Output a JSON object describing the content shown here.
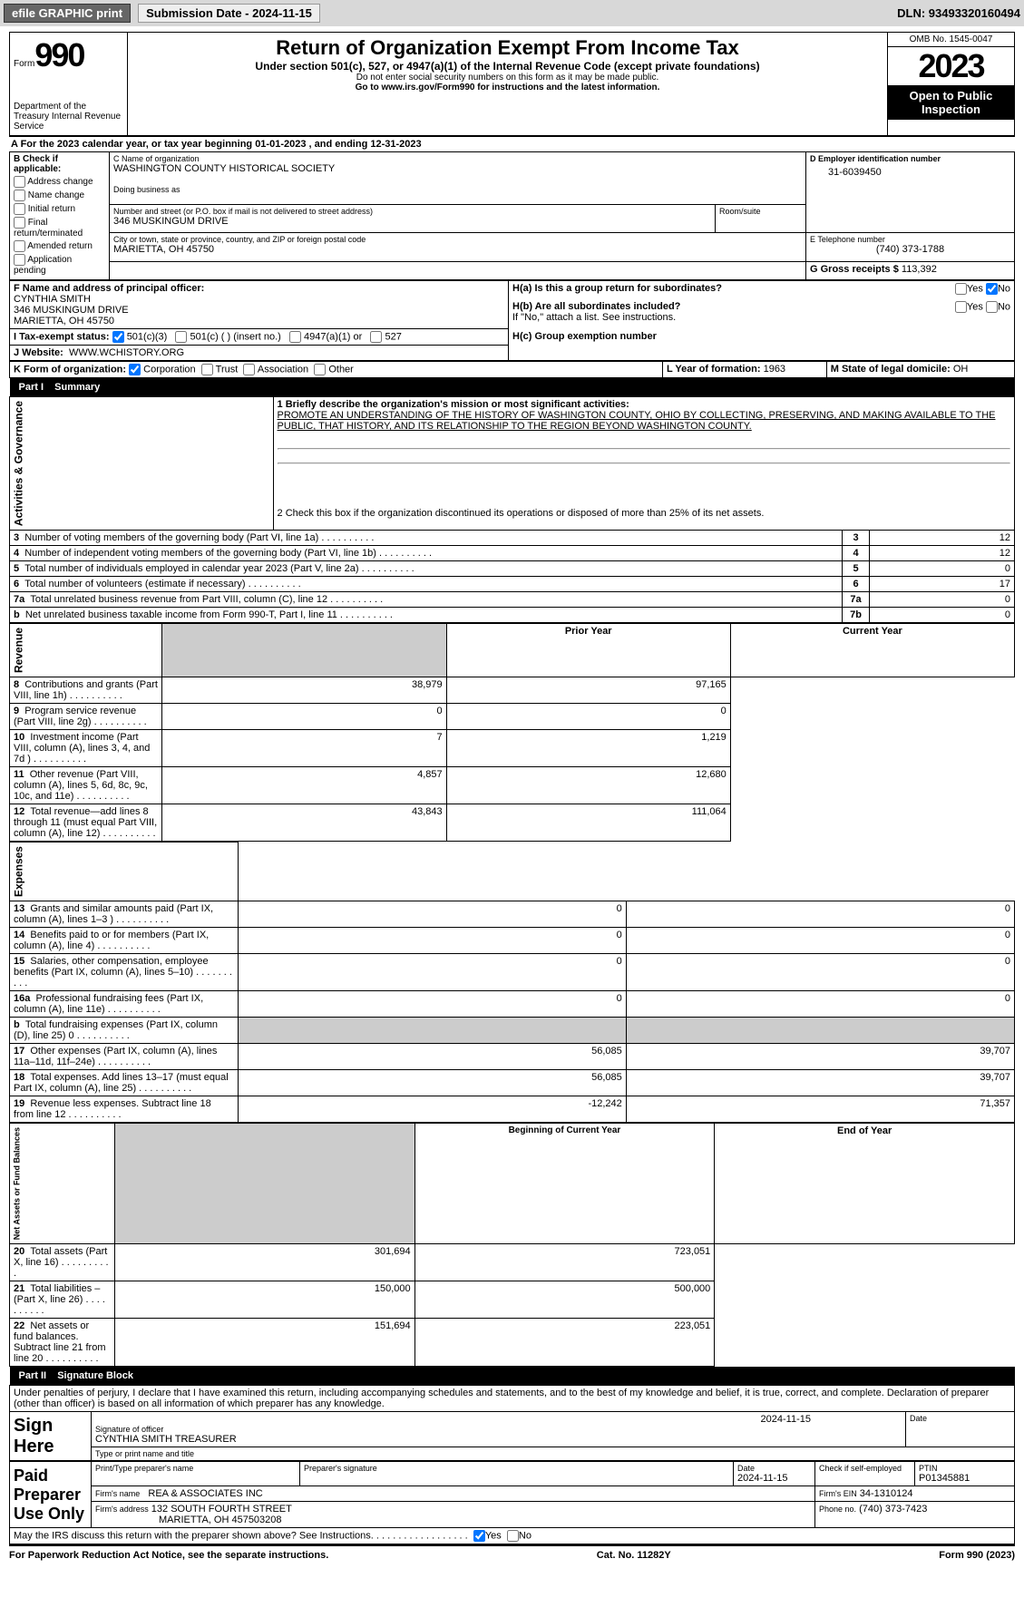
{
  "topbar": {
    "efile": "efile GRAPHIC print",
    "submission": "Submission Date - 2024-11-15",
    "dln": "DLN: 93493320160494"
  },
  "header": {
    "form_word": "Form",
    "form_no": "990",
    "dept": "Department of the Treasury\nInternal Revenue Service",
    "title": "Return of Organization Exempt From Income Tax",
    "sub1": "Under section 501(c), 527, or 4947(a)(1) of the Internal Revenue Code (except private foundations)",
    "sub2": "Do not enter social security numbers on this form as it may be made public.",
    "sub3": "Go to www.irs.gov/Form990 for instructions and the latest information.",
    "omb": "OMB No. 1545-0047",
    "year": "2023",
    "inspect": "Open to Public Inspection"
  },
  "sectionA": {
    "text": "A For the 2023 calendar year, or tax year beginning 01-01-2023   , and ending 12-31-2023"
  },
  "boxB": {
    "label": "B Check if applicable:",
    "items": [
      "Address change",
      "Name change",
      "Initial return",
      "Final return/terminated",
      "Amended return",
      "Application pending"
    ]
  },
  "boxC": {
    "name_label": "C Name of organization",
    "name": "WASHINGTON COUNTY HISTORICAL SOCIETY",
    "dba_label": "Doing business as",
    "street_label": "Number and street (or P.O. box if mail is not delivered to street address)",
    "street": "346 MUSKINGUM DRIVE",
    "room_label": "Room/suite",
    "city_label": "City or town, state or province, country, and ZIP or foreign postal code",
    "city": "MARIETTA, OH  45750"
  },
  "boxD": {
    "label": "D Employer identification number",
    "value": "31-6039450"
  },
  "boxE": {
    "label": "E Telephone number",
    "value": "(740) 373-1788"
  },
  "boxG": {
    "label": "G Gross receipts $",
    "value": "113,392"
  },
  "boxF": {
    "label": "F Name and address of principal officer:",
    "name": "CYNTHIA SMITH",
    "street": "346 MUSKINGUM DRIVE",
    "city": "MARIETTA, OH  45750"
  },
  "boxH": {
    "a": "H(a)  Is this a group return for subordinates?",
    "b": "H(b)  Are all subordinates included?",
    "b_note": "If \"No,\" attach a list. See instructions.",
    "c": "H(c)  Group exemption number"
  },
  "boxI": {
    "label": "I  Tax-exempt status:",
    "opt1": "501(c)(3)",
    "opt2": "501(c) (  ) (insert no.)",
    "opt3": "4947(a)(1) or",
    "opt4": "527"
  },
  "boxJ": {
    "label": "J  Website:",
    "value": "WWW.WCHISTORY.ORG"
  },
  "boxK": {
    "label": "K Form of organization:",
    "opts": [
      "Corporation",
      "Trust",
      "Association",
      "Other"
    ]
  },
  "boxL": {
    "label": "L Year of formation:",
    "value": "1963"
  },
  "boxM": {
    "label": "M State of legal domicile:",
    "value": "OH"
  },
  "part1": {
    "title": "Part I",
    "name": "Summary",
    "mission_label": "1  Briefly describe the organization's mission or most significant activities:",
    "mission": "PROMOTE AN UNDERSTANDING OF THE HISTORY OF WASHINGTON COUNTY, OHIO BY COLLECTING, PRESERVING, AND MAKING AVAILABLE TO THE PUBLIC, THAT HISTORY, AND ITS RELATIONSHIP TO THE REGION BEYOND WASHINGTON COUNTY.",
    "line2": "2  Check this box      if the organization discontinued its operations or disposed of more than 25% of its net assets.",
    "gov_label": "Activities & Governance",
    "rows_gov": [
      {
        "n": "3",
        "t": "Number of voting members of the governing body (Part VI, line 1a)",
        "box": "3",
        "v": "12"
      },
      {
        "n": "4",
        "t": "Number of independent voting members of the governing body (Part VI, line 1b)",
        "box": "4",
        "v": "12"
      },
      {
        "n": "5",
        "t": "Total number of individuals employed in calendar year 2023 (Part V, line 2a)",
        "box": "5",
        "v": "0"
      },
      {
        "n": "6",
        "t": "Total number of volunteers (estimate if necessary)",
        "box": "6",
        "v": "17"
      },
      {
        "n": "7a",
        "t": "Total unrelated business revenue from Part VIII, column (C), line 12",
        "box": "7a",
        "v": "0"
      },
      {
        "n": "b",
        "t": "Net unrelated business taxable income from Form 990-T, Part I, line 11",
        "box": "7b",
        "v": "0"
      }
    ],
    "col_prior": "Prior Year",
    "col_current": "Current Year",
    "rev_label": "Revenue",
    "rows_rev": [
      {
        "n": "8",
        "t": "Contributions and grants (Part VIII, line 1h)",
        "p": "38,979",
        "c": "97,165"
      },
      {
        "n": "9",
        "t": "Program service revenue (Part VIII, line 2g)",
        "p": "0",
        "c": "0"
      },
      {
        "n": "10",
        "t": "Investment income (Part VIII, column (A), lines 3, 4, and 7d )",
        "p": "7",
        "c": "1,219"
      },
      {
        "n": "11",
        "t": "Other revenue (Part VIII, column (A), lines 5, 6d, 8c, 9c, 10c, and 11e)",
        "p": "4,857",
        "c": "12,680"
      },
      {
        "n": "12",
        "t": "Total revenue—add lines 8 through 11 (must equal Part VIII, column (A), line 12)",
        "p": "43,843",
        "c": "111,064"
      }
    ],
    "exp_label": "Expenses",
    "rows_exp": [
      {
        "n": "13",
        "t": "Grants and similar amounts paid (Part IX, column (A), lines 1–3 )",
        "p": "0",
        "c": "0"
      },
      {
        "n": "14",
        "t": "Benefits paid to or for members (Part IX, column (A), line 4)",
        "p": "0",
        "c": "0"
      },
      {
        "n": "15",
        "t": "Salaries, other compensation, employee benefits (Part IX, column (A), lines 5–10)",
        "p": "0",
        "c": "0"
      },
      {
        "n": "16a",
        "t": "Professional fundraising fees (Part IX, column (A), line 11e)",
        "p": "0",
        "c": "0"
      },
      {
        "n": "b",
        "t": "Total fundraising expenses (Part IX, column (D), line 25) 0",
        "p": "",
        "c": "",
        "grey": true
      },
      {
        "n": "17",
        "t": "Other expenses (Part IX, column (A), lines 11a–11d, 11f–24e)",
        "p": "56,085",
        "c": "39,707"
      },
      {
        "n": "18",
        "t": "Total expenses. Add lines 13–17 (must equal Part IX, column (A), line 25)",
        "p": "56,085",
        "c": "39,707"
      },
      {
        "n": "19",
        "t": "Revenue less expenses. Subtract line 18 from line 12",
        "p": "-12,242",
        "c": "71,357"
      }
    ],
    "col_begin": "Beginning of Current Year",
    "col_end": "End of Year",
    "net_label": "Net Assets or Fund Balances",
    "rows_net": [
      {
        "n": "20",
        "t": "Total assets (Part X, line 16)",
        "p": "301,694",
        "c": "723,051"
      },
      {
        "n": "21",
        "t": "Total liabilities – (Part X, line 26)",
        "p": "150,000",
        "c": "500,000"
      },
      {
        "n": "22",
        "t": "Net assets or fund balances. Subtract line 21 from line 20",
        "p": "151,694",
        "c": "223,051"
      }
    ]
  },
  "part2": {
    "title": "Part II",
    "name": "Signature Block",
    "decl": "Under penalties of perjury, I declare that I have examined this return, including accompanying schedules and statements, and to the best of my knowledge and belief, it is true, correct, and complete. Declaration of preparer (other than officer) is based on all information of which preparer has any knowledge.",
    "sign_here": "Sign Here",
    "sig_label": "Signature of officer",
    "sig_name": "CYNTHIA SMITH  TREASURER",
    "sig_type": "Type or print name and title",
    "date_label": "Date",
    "date": "2024-11-15",
    "paid": "Paid Preparer Use Only",
    "prep_name_label": "Print/Type preparer's name",
    "prep_sig_label": "Preparer's signature",
    "prep_date_label": "Date",
    "prep_date": "2024-11-15",
    "check_label": "Check       if self-employed",
    "ptin_label": "PTIN",
    "ptin": "P01345881",
    "firm_name_label": "Firm's name",
    "firm_name": "REA & ASSOCIATES INC",
    "firm_ein_label": "Firm's EIN",
    "firm_ein": "34-1310124",
    "firm_addr_label": "Firm's address",
    "firm_addr": "132 SOUTH FOURTH STREET",
    "firm_city": "MARIETTA, OH  457503208",
    "phone_label": "Phone no.",
    "phone": "(740) 373-7423",
    "discuss": "May the IRS discuss this return with the preparer shown above? See Instructions.",
    "yes": "Yes",
    "no": "No"
  },
  "footer": {
    "left": "For Paperwork Reduction Act Notice, see the separate instructions.",
    "center": "Cat. No. 11282Y",
    "right": "Form 990 (2023)"
  }
}
